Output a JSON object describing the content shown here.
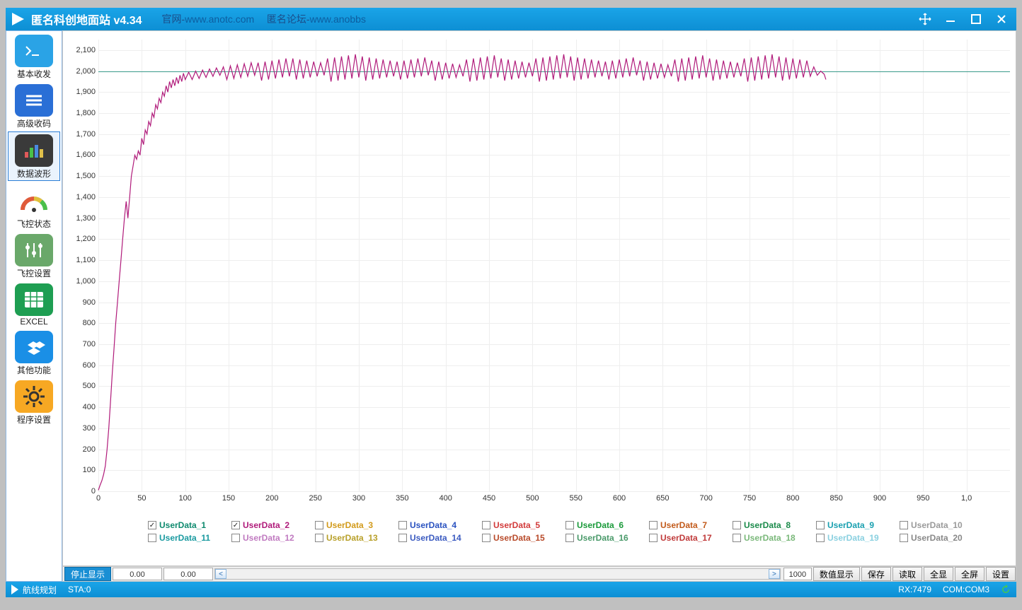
{
  "window": {
    "title": "匿名科创地面站 v4.34",
    "link1_label": "官网-",
    "link1_url": "www.anotc.com",
    "link2_label": "匿名论坛-",
    "link2_url": "www.anobbs"
  },
  "sidebar": {
    "items": [
      {
        "key": "basic",
        "label": "基本收发",
        "icon": "terminal",
        "bg": "#2aa3e6",
        "selected": false
      },
      {
        "key": "adv",
        "label": "高级收码",
        "icon": "lines",
        "bg": "#2a6fd6",
        "selected": false
      },
      {
        "key": "wave",
        "label": "数据波形",
        "icon": "bars",
        "bg": "#3a3a3a",
        "selected": true
      },
      {
        "key": "state",
        "label": "飞控状态",
        "icon": "gauge",
        "bg": "#ffffff",
        "selected": false
      },
      {
        "key": "cfg",
        "label": "飞控设置",
        "icon": "sliders",
        "bg": "#6aa86a",
        "selected": false
      },
      {
        "key": "excel",
        "label": "EXCEL",
        "icon": "sheet",
        "bg": "#1e9e52",
        "selected": false
      },
      {
        "key": "other",
        "label": "其他功能",
        "icon": "dropbox",
        "bg": "#1a8fe6",
        "selected": false
      },
      {
        "key": "prog",
        "label": "程序设置",
        "icon": "gear",
        "bg": "#f7a823",
        "selected": false
      }
    ]
  },
  "chart": {
    "type": "line",
    "background_color": "#ffffff",
    "grid_color": "#eeeeee",
    "axis_color": "#666666",
    "label_fontsize": 11,
    "xlim": [
      0,
      1050
    ],
    "ylim": [
      0,
      2150
    ],
    "xtick_step": 50,
    "ytick_step": 100,
    "ytick_start": 0,
    "ytick_labels": [
      "0",
      "100",
      "200",
      "300",
      "400",
      "500",
      "600",
      "700",
      "800",
      "900",
      "1,000",
      "1,100",
      "1,200",
      "1,300",
      "1,400",
      "1,500",
      "1,600",
      "1,700",
      "1,800",
      "1,900",
      "2,000",
      "2,100"
    ],
    "xtick_labels": [
      "0",
      "50",
      "100",
      "150",
      "200",
      "250",
      "300",
      "350",
      "400",
      "450",
      "500",
      "550",
      "600",
      "650",
      "700",
      "750",
      "800",
      "850",
      "900",
      "950",
      "1,0"
    ],
    "reference_line": {
      "y": 2000,
      "color": "#3a9a8a",
      "width": 1
    },
    "series": [
      {
        "name": "UserData_1",
        "color": "#0e8a6e",
        "visible": false,
        "data": []
      },
      {
        "name": "UserData_2",
        "color": "#b01a7a",
        "visible": true,
        "data": [
          [
            0,
            5
          ],
          [
            2,
            30
          ],
          [
            4,
            50
          ],
          [
            6,
            80
          ],
          [
            8,
            120
          ],
          [
            10,
            200
          ],
          [
            12,
            300
          ],
          [
            14,
            430
          ],
          [
            16,
            560
          ],
          [
            18,
            680
          ],
          [
            20,
            800
          ],
          [
            22,
            900
          ],
          [
            24,
            1000
          ],
          [
            26,
            1100
          ],
          [
            28,
            1200
          ],
          [
            30,
            1300
          ],
          [
            32,
            1380
          ],
          [
            34,
            1300
          ],
          [
            36,
            1400
          ],
          [
            38,
            1500
          ],
          [
            40,
            1550
          ],
          [
            42,
            1600
          ],
          [
            44,
            1580
          ],
          [
            46,
            1620
          ],
          [
            48,
            1600
          ],
          [
            50,
            1680
          ],
          [
            52,
            1650
          ],
          [
            54,
            1720
          ],
          [
            56,
            1700
          ],
          [
            58,
            1760
          ],
          [
            60,
            1740
          ],
          [
            62,
            1800
          ],
          [
            64,
            1780
          ],
          [
            66,
            1840
          ],
          [
            68,
            1820
          ],
          [
            70,
            1870
          ],
          [
            72,
            1850
          ],
          [
            74,
            1900
          ],
          [
            76,
            1880
          ],
          [
            78,
            1930
          ],
          [
            80,
            1900
          ],
          [
            82,
            1950
          ],
          [
            84,
            1920
          ],
          [
            86,
            1960
          ],
          [
            88,
            1930
          ],
          [
            90,
            1970
          ],
          [
            92,
            1940
          ],
          [
            94,
            1980
          ],
          [
            96,
            1950
          ],
          [
            98,
            1990
          ],
          [
            100,
            1960
          ],
          [
            104,
            1995
          ],
          [
            108,
            1960
          ],
          [
            112,
            2000
          ],
          [
            116,
            1965
          ],
          [
            120,
            2005
          ],
          [
            124,
            1970
          ],
          [
            128,
            2010
          ],
          [
            132,
            1975
          ],
          [
            136,
            2015
          ],
          [
            140,
            1980
          ],
          [
            144,
            2020
          ],
          [
            148,
            1960
          ],
          [
            152,
            2025
          ],
          [
            156,
            1965
          ],
          [
            160,
            2030
          ],
          [
            164,
            1970
          ],
          [
            168,
            2035
          ],
          [
            172,
            1975
          ],
          [
            176,
            2040
          ],
          [
            180,
            1980
          ],
          [
            184,
            2040
          ],
          [
            188,
            1955
          ],
          [
            192,
            2045
          ],
          [
            196,
            1960
          ],
          [
            200,
            2050
          ],
          [
            204,
            1965
          ],
          [
            208,
            2055
          ],
          [
            212,
            1970
          ],
          [
            216,
            2060
          ],
          [
            220,
            1975
          ],
          [
            224,
            2060
          ],
          [
            228,
            1960
          ],
          [
            232,
            2055
          ],
          [
            236,
            1965
          ],
          [
            240,
            2050
          ],
          [
            244,
            1970
          ],
          [
            248,
            2045
          ],
          [
            252,
            1975
          ],
          [
            256,
            2040
          ],
          [
            260,
            1980
          ],
          [
            264,
            2060
          ],
          [
            268,
            1950
          ],
          [
            272,
            2065
          ],
          [
            276,
            1955
          ],
          [
            280,
            2070
          ],
          [
            284,
            1960
          ],
          [
            288,
            2075
          ],
          [
            292,
            1965
          ],
          [
            296,
            2080
          ],
          [
            300,
            1970
          ],
          [
            304,
            2070
          ],
          [
            308,
            1955
          ],
          [
            312,
            2065
          ],
          [
            316,
            1960
          ],
          [
            320,
            2060
          ],
          [
            324,
            1965
          ],
          [
            328,
            2055
          ],
          [
            332,
            1970
          ],
          [
            336,
            2050
          ],
          [
            340,
            1975
          ],
          [
            344,
            2045
          ],
          [
            348,
            1960
          ],
          [
            352,
            2050
          ],
          [
            356,
            1965
          ],
          [
            360,
            2055
          ],
          [
            364,
            1970
          ],
          [
            368,
            2060
          ],
          [
            372,
            1975
          ],
          [
            376,
            2065
          ],
          [
            380,
            1980
          ],
          [
            384,
            2050
          ],
          [
            388,
            1955
          ],
          [
            392,
            2045
          ],
          [
            396,
            1960
          ],
          [
            400,
            2040
          ],
          [
            404,
            1965
          ],
          [
            408,
            2035
          ],
          [
            412,
            1970
          ],
          [
            416,
            2030
          ],
          [
            420,
            1975
          ],
          [
            424,
            2055
          ],
          [
            428,
            1950
          ],
          [
            432,
            2060
          ],
          [
            436,
            1955
          ],
          [
            440,
            2065
          ],
          [
            444,
            1960
          ],
          [
            448,
            2070
          ],
          [
            452,
            1965
          ],
          [
            456,
            2075
          ],
          [
            460,
            1970
          ],
          [
            464,
            2060
          ],
          [
            468,
            1955
          ],
          [
            472,
            2055
          ],
          [
            476,
            1960
          ],
          [
            480,
            2050
          ],
          [
            484,
            1965
          ],
          [
            488,
            2045
          ],
          [
            492,
            1970
          ],
          [
            496,
            2040
          ],
          [
            500,
            1975
          ],
          [
            504,
            2060
          ],
          [
            508,
            1950
          ],
          [
            512,
            2065
          ],
          [
            516,
            1955
          ],
          [
            520,
            2070
          ],
          [
            524,
            1960
          ],
          [
            528,
            2075
          ],
          [
            532,
            1965
          ],
          [
            536,
            2080
          ],
          [
            540,
            1970
          ],
          [
            544,
            2070
          ],
          [
            548,
            1955
          ],
          [
            552,
            2065
          ],
          [
            556,
            1960
          ],
          [
            560,
            2060
          ],
          [
            564,
            1965
          ],
          [
            568,
            2055
          ],
          [
            572,
            1970
          ],
          [
            576,
            2050
          ],
          [
            580,
            1975
          ],
          [
            584,
            2045
          ],
          [
            588,
            1960
          ],
          [
            592,
            2050
          ],
          [
            596,
            1965
          ],
          [
            600,
            2055
          ],
          [
            604,
            1970
          ],
          [
            608,
            2060
          ],
          [
            612,
            1975
          ],
          [
            616,
            2065
          ],
          [
            620,
            1980
          ],
          [
            624,
            2050
          ],
          [
            628,
            1955
          ],
          [
            632,
            2045
          ],
          [
            636,
            1960
          ],
          [
            640,
            2040
          ],
          [
            644,
            1965
          ],
          [
            648,
            2035
          ],
          [
            652,
            1970
          ],
          [
            656,
            2030
          ],
          [
            660,
            1975
          ],
          [
            664,
            2055
          ],
          [
            668,
            1950
          ],
          [
            672,
            2060
          ],
          [
            676,
            1955
          ],
          [
            680,
            2065
          ],
          [
            684,
            1960
          ],
          [
            688,
            2070
          ],
          [
            692,
            1965
          ],
          [
            696,
            2075
          ],
          [
            700,
            1970
          ],
          [
            704,
            2060
          ],
          [
            708,
            1955
          ],
          [
            712,
            2055
          ],
          [
            716,
            1960
          ],
          [
            720,
            2050
          ],
          [
            724,
            1965
          ],
          [
            728,
            2045
          ],
          [
            732,
            1970
          ],
          [
            736,
            2040
          ],
          [
            740,
            1975
          ],
          [
            744,
            2060
          ],
          [
            748,
            1950
          ],
          [
            752,
            2065
          ],
          [
            756,
            1955
          ],
          [
            760,
            2070
          ],
          [
            764,
            1960
          ],
          [
            768,
            2075
          ],
          [
            772,
            1965
          ],
          [
            776,
            2080
          ],
          [
            780,
            1970
          ],
          [
            784,
            2070
          ],
          [
            788,
            1955
          ],
          [
            792,
            2065
          ],
          [
            796,
            1960
          ],
          [
            800,
            2060
          ],
          [
            804,
            1965
          ],
          [
            808,
            2055
          ],
          [
            812,
            1970
          ],
          [
            816,
            2050
          ],
          [
            820,
            1975
          ],
          [
            824,
            2020
          ],
          [
            828,
            1980
          ],
          [
            832,
            2000
          ],
          [
            836,
            1985
          ],
          [
            838,
            1960
          ]
        ]
      }
    ]
  },
  "legend": {
    "items": [
      {
        "label": "UserData_1",
        "color": "#0e8a6e",
        "checked": true
      },
      {
        "label": "UserData_2",
        "color": "#b01a7a",
        "checked": true
      },
      {
        "label": "UserData_3",
        "color": "#d29a1a",
        "checked": false
      },
      {
        "label": "UserData_4",
        "color": "#2a52c0",
        "checked": false
      },
      {
        "label": "UserData_5",
        "color": "#d23a3a",
        "checked": false
      },
      {
        "label": "UserData_6",
        "color": "#1a9a3a",
        "checked": false
      },
      {
        "label": "UserData_7",
        "color": "#c25a1a",
        "checked": false
      },
      {
        "label": "UserData_8",
        "color": "#1a8a4a",
        "checked": false
      },
      {
        "label": "UserData_9",
        "color": "#1aa0b0",
        "checked": false
      },
      {
        "label": "UserData_10",
        "color": "#9a9a9a",
        "checked": false
      },
      {
        "label": "UserData_11",
        "color": "#1a9aa0",
        "checked": false
      },
      {
        "label": "UserData_12",
        "color": "#c07ac0",
        "checked": false
      },
      {
        "label": "UserData_13",
        "color": "#b8a02a",
        "checked": false
      },
      {
        "label": "UserData_14",
        "color": "#3a5ac0",
        "checked": false
      },
      {
        "label": "UserData_15",
        "color": "#b84a2a",
        "checked": false
      },
      {
        "label": "UserData_16",
        "color": "#4a9a6a",
        "checked": false
      },
      {
        "label": "UserData_17",
        "color": "#c03a3a",
        "checked": false
      },
      {
        "label": "UserData_18",
        "color": "#7ab87a",
        "checked": false
      },
      {
        "label": "UserData_19",
        "color": "#8ad0e0",
        "checked": false
      },
      {
        "label": "UserData_20",
        "color": "#888888",
        "checked": false
      }
    ]
  },
  "controls": {
    "stop_label": "停止显示",
    "val1": "0.00",
    "val2": "0.00",
    "range_value": "1000",
    "btn_numshow": "数值显示",
    "btn_save": "保存",
    "btn_read": "读取",
    "btn_allshow": "全显",
    "btn_fullscreen": "全屏",
    "btn_settings": "设置"
  },
  "status": {
    "route_label": "航线规划",
    "sta_label": "STA:0",
    "rx_label": "RX:7479",
    "com_label": "COM:COM3"
  }
}
